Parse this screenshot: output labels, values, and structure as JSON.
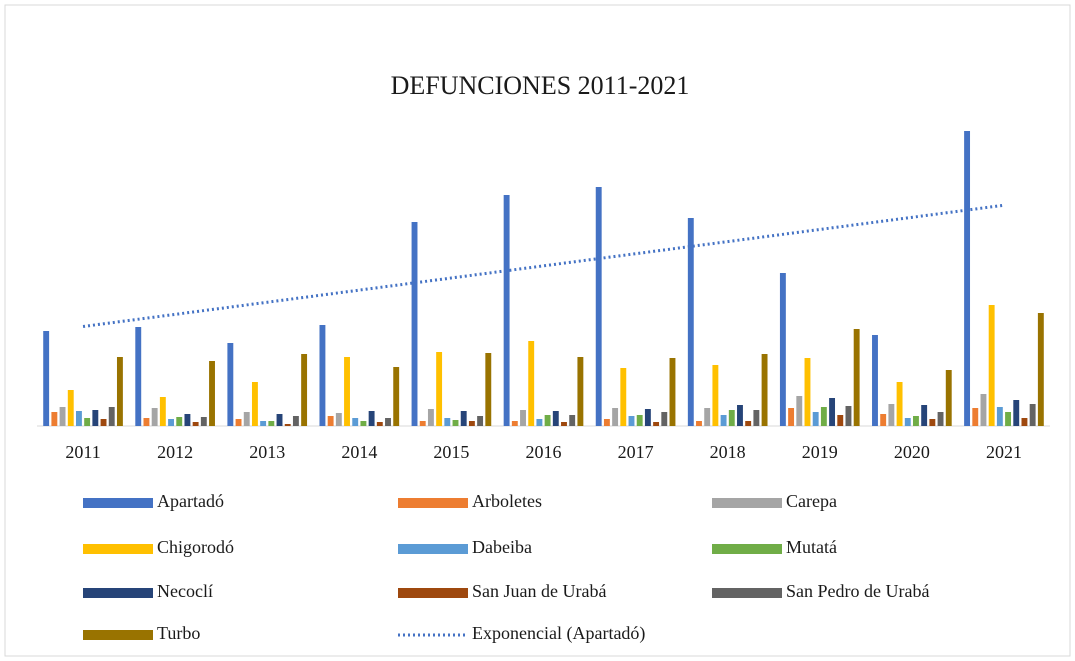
{
  "chart_data": {
    "type": "bar",
    "title": "DEFUNCIONES 2011-2021",
    "categories": [
      "2011",
      "2012",
      "2013",
      "2014",
      "2015",
      "2016",
      "2017",
      "2018",
      "2019",
      "2020",
      "2021"
    ],
    "ylim": [
      0,
      300
    ],
    "series": [
      {
        "name": "Apartadó",
        "color": "#4472c4",
        "values": [
          95,
          99,
          83,
          101,
          204,
          231,
          239,
          208,
          153,
          91,
          295
        ]
      },
      {
        "name": "Arboletes",
        "color": "#ed7d31",
        "values": [
          14,
          8,
          7,
          10,
          5,
          5,
          7,
          5,
          18,
          12,
          18
        ]
      },
      {
        "name": "Carepa",
        "color": "#a5a5a5",
        "values": [
          19,
          18,
          14,
          13,
          17,
          16,
          18,
          18,
          30,
          22,
          32
        ]
      },
      {
        "name": "Chigorodó",
        "color": "#ffc000",
        "values": [
          36,
          29,
          44,
          69,
          74,
          85,
          58,
          61,
          68,
          44,
          121
        ]
      },
      {
        "name": "Dabeiba",
        "color": "#5b9bd5",
        "values": [
          15,
          7,
          5,
          8,
          8,
          7,
          10,
          11,
          14,
          8,
          19
        ]
      },
      {
        "name": "Mutatá",
        "color": "#70ad47",
        "values": [
          8,
          9,
          5,
          5,
          6,
          11,
          11,
          16,
          19,
          10,
          14
        ]
      },
      {
        "name": "Necoclí",
        "color": "#264478",
        "values": [
          16,
          12,
          12,
          15,
          15,
          15,
          17,
          21,
          28,
          21,
          26
        ]
      },
      {
        "name": "San Juan de Urabá",
        "color": "#9e480e",
        "values": [
          7,
          4,
          2,
          4,
          5,
          4,
          4,
          5,
          11,
          7,
          8
        ]
      },
      {
        "name": "San Pedro de Urabá",
        "color": "#636363",
        "values": [
          19,
          9,
          10,
          8,
          10,
          11,
          14,
          16,
          20,
          14,
          22
        ]
      },
      {
        "name": "Turbo",
        "color": "#997300",
        "values": [
          69,
          65,
          72,
          59,
          73,
          69,
          68,
          72,
          97,
          56,
          113
        ]
      }
    ],
    "trendline": {
      "name": "Exponencial (Apartadó)",
      "of": "Apartadó",
      "fit": "exponential",
      "color": "#4472c4"
    }
  }
}
